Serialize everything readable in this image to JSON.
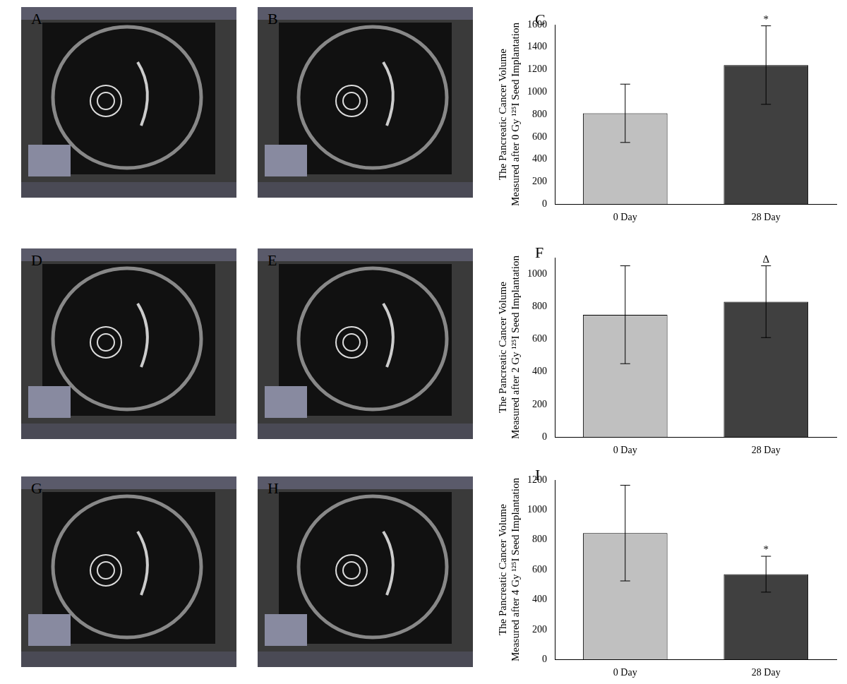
{
  "images": [
    {
      "label": "A"
    },
    {
      "label": "B"
    },
    {
      "label": "D"
    },
    {
      "label": "E"
    },
    {
      "label": "G"
    },
    {
      "label": "H"
    }
  ],
  "chart_data": [
    {
      "type": "bar",
      "label": "C",
      "y_label": [
        "The Pancreatic Cancer Volume",
        "Measured after 0 Gy ¹²⁵I Seed Implantation"
      ],
      "categories": [
        "0 Day",
        "28 Day"
      ],
      "values": [
        810,
        1240
      ],
      "errors": [
        260,
        350
      ],
      "colors": [
        "#c0c0c0",
        "#404040"
      ],
      "ylim": [
        0,
        1600
      ],
      "yticks": [
        0,
        200,
        400,
        600,
        800,
        1000,
        1200,
        1400,
        1600
      ],
      "grid": false,
      "annotations": [
        {
          "category": "28 Day",
          "text": "*"
        }
      ]
    },
    {
      "type": "bar",
      "label": "F",
      "y_label": [
        "The Pancreatic Cancer Volume",
        "Measured after 2 Gy ¹²⁵I Seed Implantation"
      ],
      "categories": [
        "0 Day",
        "28 Day"
      ],
      "values": [
        750,
        830
      ],
      "errors": [
        300,
        220
      ],
      "colors": [
        "#c0c0c0",
        "#404040"
      ],
      "ylim": [
        0,
        1100
      ],
      "yticks": [
        0,
        200,
        400,
        600,
        800,
        1000
      ],
      "grid": false,
      "annotations": [
        {
          "category": "28 Day",
          "text": "Δ"
        }
      ]
    },
    {
      "type": "bar",
      "label": "I",
      "y_label": [
        "The Pancreatic Cancer Volume",
        "Measured after 4 Gy ¹²⁵I Seed Implantation"
      ],
      "categories": [
        "0 Day",
        "28 Day"
      ],
      "values": [
        845,
        570
      ],
      "errors": [
        320,
        120
      ],
      "colors": [
        "#c0c0c0",
        "#404040"
      ],
      "ylim": [
        0,
        1200
      ],
      "yticks": [
        0,
        200,
        400,
        600,
        800,
        1000,
        1200
      ],
      "grid": false,
      "annotations": [
        {
          "category": "28 Day",
          "text": "*"
        }
      ]
    }
  ]
}
